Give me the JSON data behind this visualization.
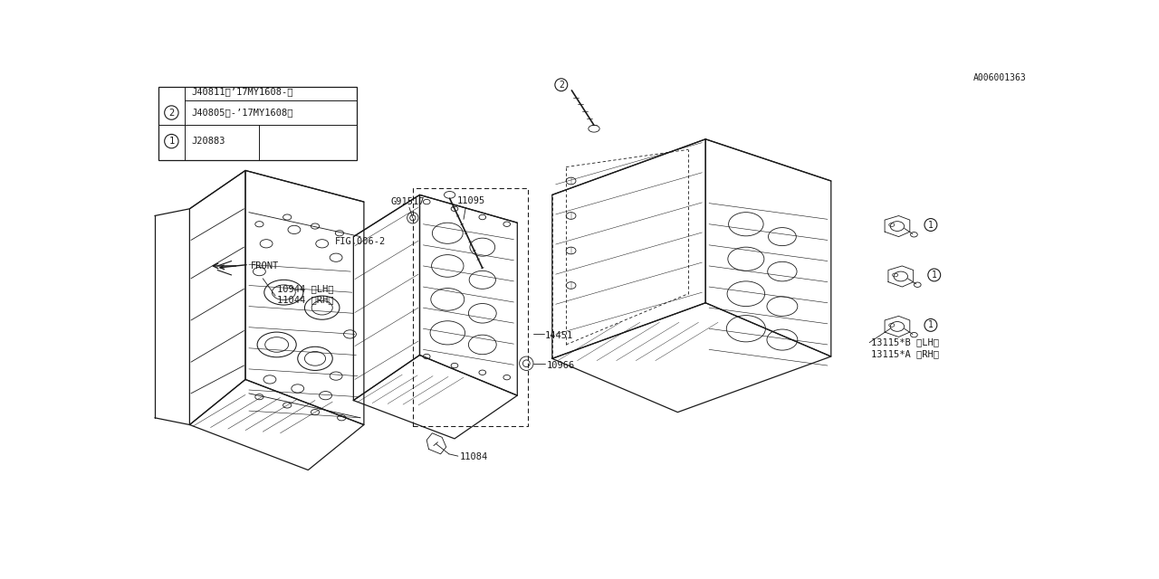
{
  "bg_color": "#ffffff",
  "line_color": "#1a1a1a",
  "fig_id": "A006001363",
  "label_11084": "11084",
  "label_10966": "10966",
  "label_14451": "14451",
  "label_11044": "11044 〈RH〉",
  "label_10944": "10944 〈LH〉",
  "label_fig": "FIG.006-2",
  "label_G91517": "G91517",
  "label_11095": "11095",
  "label_13115A": "13115*A 〈RH〉",
  "label_13115B": "13115*B 〈LH〉",
  "label_front": "FRONT",
  "legend_1_code": "J20883",
  "legend_2_code1": "J40805（-’17MY1608）",
  "legend_2_code2": "J40811（’17MY1608-）",
  "font_size_label": 7.5,
  "font_size_legend": 7.5
}
